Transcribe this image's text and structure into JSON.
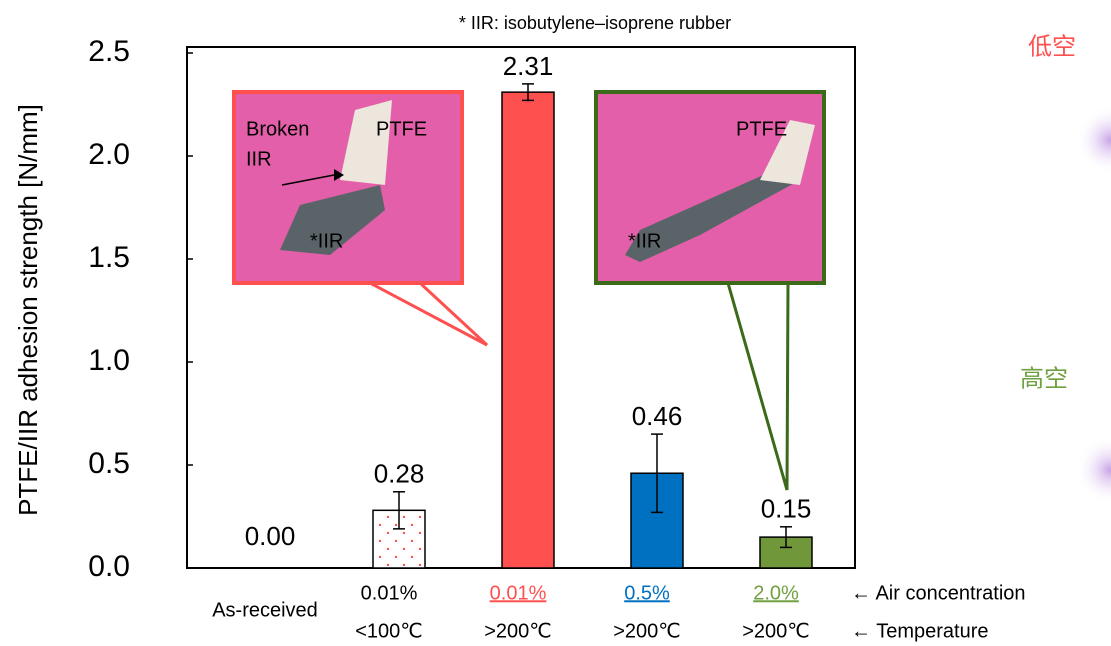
{
  "chart_data": {
    "type": "bar",
    "title": "* IIR: isobutylene–isoprene rubber",
    "y_label": "PTFE/IIR adhesion strength [N/mm]",
    "categories": [
      "As-received",
      "0.01%",
      "0.01%",
      "0.5%",
      "2.0%"
    ],
    "temperatures": [
      null,
      "<100℃",
      ">200℃",
      ">200℃",
      ">200℃"
    ],
    "row_labels": [
      "← Air concentration",
      "← Temperature"
    ],
    "label_colors": [
      "#000000",
      "#000000",
      "#ff5050",
      "#0070c0",
      "#70a040"
    ],
    "underline": [
      false,
      false,
      true,
      true,
      true
    ],
    "values": [
      0,
      0.28,
      2.31,
      0.46,
      0.15
    ],
    "value_labels": [
      "0.00",
      "0.28",
      "2.31",
      "0.46",
      "0.15"
    ],
    "errors": [
      null,
      0.09,
      0.04,
      0.19,
      0.05
    ],
    "colors": [
      "#ffffff",
      "url(#dots)",
      "#ff5050",
      "#0070c0",
      "#70983a"
    ],
    "ylim": [
      0,
      2.5
    ],
    "yticks": [
      {
        "value": 0,
        "label": "0.0"
      },
      {
        "value": 0.5,
        "label": "0.5"
      },
      {
        "value": 1,
        "label": "1.0"
      },
      {
        "value": 1.5,
        "label": "1.5"
      },
      {
        "value": 2,
        "label": "2.0"
      },
      {
        "value": 2.5,
        "label": "2.5"
      }
    ],
    "insets": [
      {
        "labels": [
          "Broken",
          "IIR",
          "PTFE",
          "*IIR"
        ]
      },
      {
        "labels": [
          "PTFE",
          "*IIR"
        ]
      }
    ],
    "side_labels": [
      "低空",
      "高空"
    ]
  }
}
